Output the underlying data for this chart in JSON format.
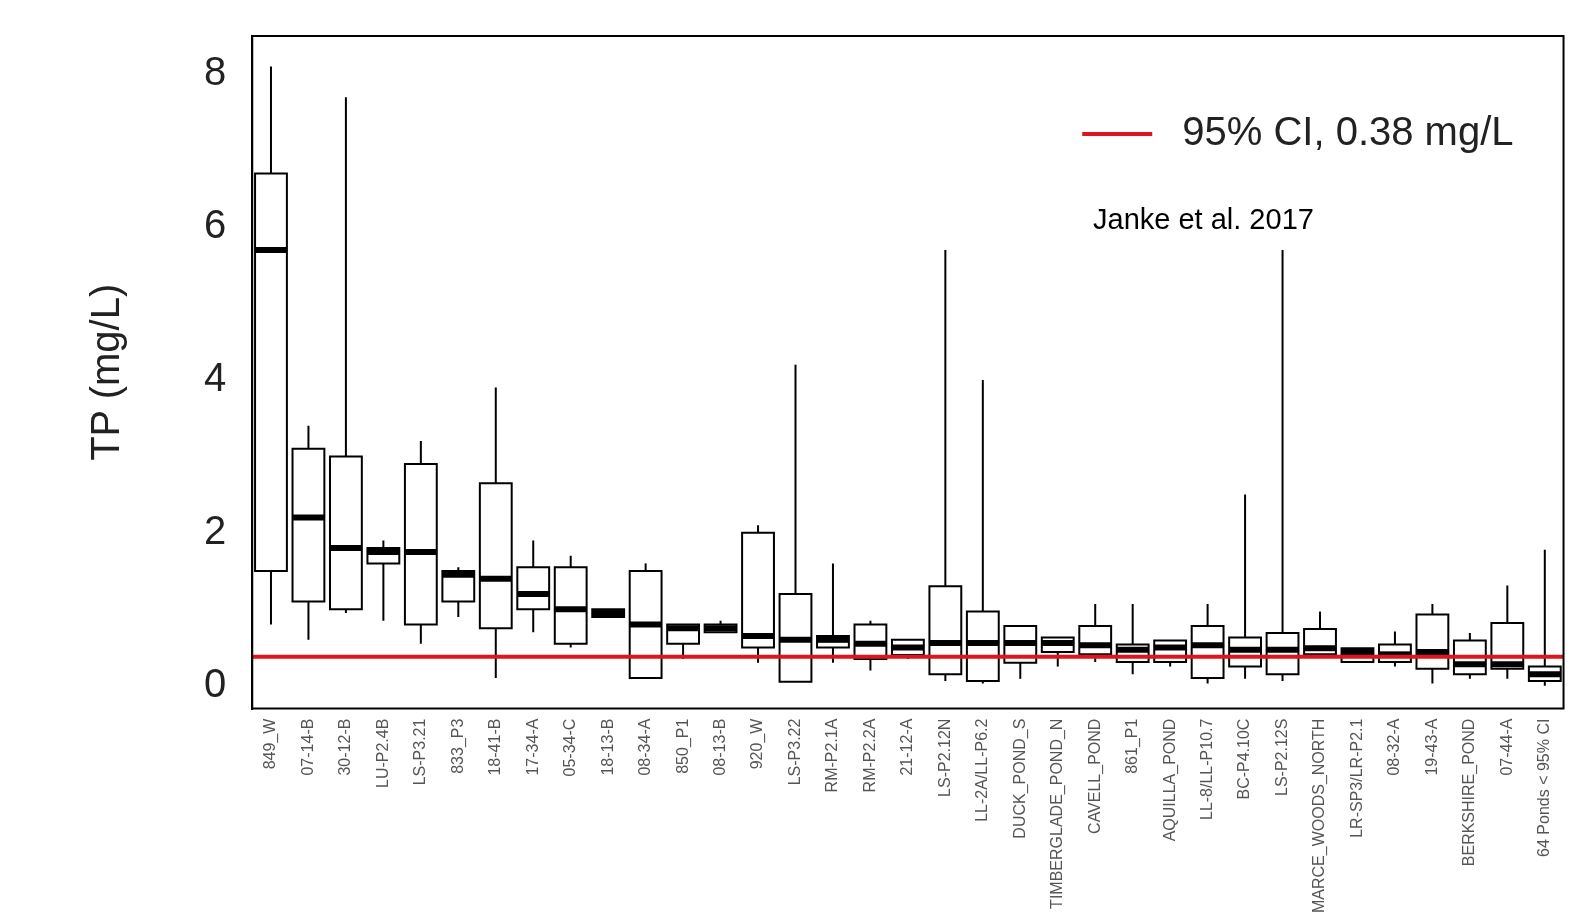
{
  "chart_data": {
    "type": "box",
    "ylabel": "TP (mg/L)",
    "color": "#000000",
    "legend": "top right",
    "categories": [
      "849_W",
      "07-14-B",
      "30-12-B",
      "LU-P2.4B",
      "LS-P3.21",
      "833_P3",
      "18-41-B",
      "17-34-A",
      "05-34-C",
      "18-13-B",
      "08-34-A",
      "850_P1",
      "08-13-B",
      "920_W",
      "LS-P3.22",
      "RM-P2.1A",
      "RM-P2.2A",
      "21-12-A",
      "LS-P2.12N",
      "LL-2A/LL-P6.2",
      "DUCK_POND_S",
      "TIMBERGLADE_POND_N",
      "CAVELL_POND",
      "861_P1",
      "AQUILLA_POND",
      "LL-8/LL-P10.7",
      "BC-P4.10C",
      "LS-P2.12S",
      "MARCE_WOODS_NORTH",
      "LR-SP3/LR-P2.1",
      "08-32-A",
      "19-43-A",
      "BERKSHIRE_POND",
      "07-44-A",
      "64 Ponds < 95% CI"
    ],
    "boxes": [
      {
        "low": 0.8,
        "q1": 1.5,
        "median": 5.7,
        "q3": 6.7,
        "high": 8.1
      },
      {
        "low": 0.6,
        "q1": 1.1,
        "median": 2.2,
        "q3": 3.1,
        "high": 3.4
      },
      {
        "low": 0.95,
        "q1": 1.0,
        "median": 1.8,
        "q3": 3.0,
        "high": 7.7
      },
      {
        "low": 0.85,
        "q1": 1.6,
        "median": 1.75,
        "q3": 1.8,
        "high": 1.9
      },
      {
        "low": 0.55,
        "q1": 0.8,
        "median": 1.75,
        "q3": 2.9,
        "high": 3.2
      },
      {
        "low": 0.9,
        "q1": 1.1,
        "median": 1.45,
        "q3": 1.5,
        "high": 1.55
      },
      {
        "low": 0.1,
        "q1": 0.75,
        "median": 1.4,
        "q3": 2.65,
        "high": 3.9
      },
      {
        "low": 0.7,
        "q1": 1.0,
        "median": 1.2,
        "q3": 1.55,
        "high": 1.9
      },
      {
        "low": 0.5,
        "q1": 0.55,
        "median": 1.0,
        "q3": 1.55,
        "high": 1.7
      },
      {
        "low": 0.9,
        "q1": 0.9,
        "median": 0.95,
        "q3": 1.0,
        "high": 1.0
      },
      {
        "low": 0.1,
        "q1": 0.1,
        "median": 0.8,
        "q3": 1.5,
        "high": 1.6
      },
      {
        "low": 0.35,
        "q1": 0.55,
        "median": 0.75,
        "q3": 0.8,
        "high": 0.8
      },
      {
        "low": 0.7,
        "q1": 0.7,
        "median": 0.75,
        "q3": 0.8,
        "high": 0.85
      },
      {
        "low": 0.3,
        "q1": 0.5,
        "median": 0.65,
        "q3": 2.0,
        "high": 2.1
      },
      {
        "low": 0.05,
        "q1": 0.05,
        "median": 0.6,
        "q3": 1.2,
        "high": 4.2
      },
      {
        "low": 0.3,
        "q1": 0.5,
        "median": 0.6,
        "q3": 0.65,
        "high": 1.6
      },
      {
        "low": 0.2,
        "q1": 0.35,
        "median": 0.55,
        "q3": 0.8,
        "high": 0.85
      },
      {
        "low": 0.35,
        "q1": 0.4,
        "median": 0.5,
        "q3": 0.6,
        "high": 0.6
      },
      {
        "low": 0.06,
        "q1": 0.15,
        "median": 0.56,
        "q3": 1.3,
        "high": 5.7
      },
      {
        "low": 0.03,
        "q1": 0.06,
        "median": 0.56,
        "q3": 0.97,
        "high": 4.0
      },
      {
        "low": 0.09,
        "q1": 0.3,
        "median": 0.56,
        "q3": 0.78,
        "high": 0.78
      },
      {
        "low": 0.25,
        "q1": 0.44,
        "median": 0.56,
        "q3": 0.63,
        "high": 0.63
      },
      {
        "low": 0.31,
        "q1": 0.41,
        "median": 0.53,
        "q3": 0.78,
        "high": 1.07
      },
      {
        "low": 0.15,
        "q1": 0.31,
        "median": 0.47,
        "q3": 0.54,
        "high": 1.07
      },
      {
        "low": 0.25,
        "q1": 0.31,
        "median": 0.5,
        "q3": 0.59,
        "high": 0.59
      },
      {
        "low": 0.03,
        "q1": 0.1,
        "median": 0.53,
        "q3": 0.78,
        "high": 1.07
      },
      {
        "low": 0.09,
        "q1": 0.25,
        "median": 0.47,
        "q3": 0.63,
        "high": 2.5
      },
      {
        "low": 0.06,
        "q1": 0.15,
        "median": 0.47,
        "q3": 0.69,
        "high": 5.7
      },
      {
        "low": 0.41,
        "q1": 0.41,
        "median": 0.49,
        "q3": 0.74,
        "high": 0.97
      },
      {
        "low": 0.31,
        "q1": 0.31,
        "median": 0.44,
        "q3": 0.49,
        "high": 0.49
      },
      {
        "low": 0.25,
        "q1": 0.31,
        "median": 0.41,
        "q3": 0.54,
        "high": 0.71
      },
      {
        "low": 0.03,
        "q1": 0.22,
        "median": 0.44,
        "q3": 0.93,
        "high": 1.07
      },
      {
        "low": 0.09,
        "q1": 0.15,
        "median": 0.28,
        "q3": 0.59,
        "high": 0.69
      },
      {
        "low": 0.09,
        "q1": 0.22,
        "median": 0.28,
        "q3": 0.82,
        "high": 1.31
      },
      {
        "low": 0.0,
        "q1": 0.06,
        "median": 0.15,
        "q3": 0.25,
        "high": 1.78
      }
    ],
    "ylim": [
      -0.3,
      8.5
    ],
    "yticks": [
      0,
      2,
      4,
      6,
      8
    ],
    "ref_lines": [
      {
        "axis": "y",
        "value": 0.38,
        "label": "95% CI, 0.38 mg/L",
        "color": "#e0141e"
      }
    ],
    "annotations": [
      "Janke et al. 2017"
    ]
  }
}
